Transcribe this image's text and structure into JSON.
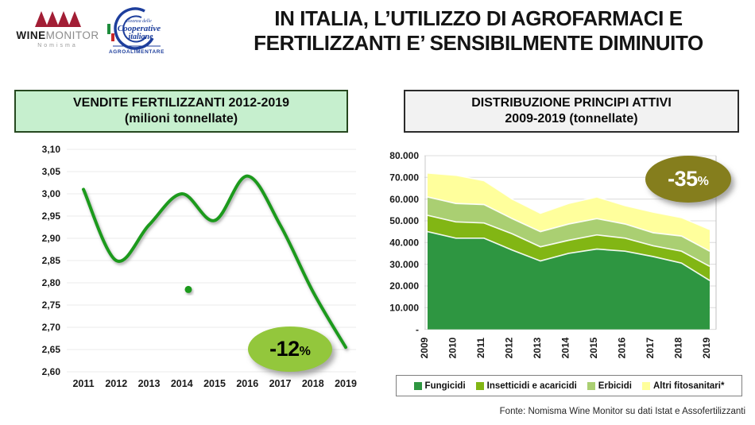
{
  "slide": {
    "title_line1": "IN ITALIA, L’UTILIZZO DI AGROFARMACI E",
    "title_line2": "FERTILIZZANTI E’ SENSIBILMENTE DIMINUITO",
    "footer": "Fonte: Nomisma Wine Monitor su dati Istat e Assofertilizzanti"
  },
  "logos": {
    "winemonitor": {
      "name": "Wine Monitor Nomisma",
      "word_strong": "WINE",
      "word_light": "MONITOR",
      "subtext": "Nomisma",
      "mark_color": "#a21e35"
    },
    "cooperative": {
      "name": "Alleanza delle Cooperative Italiane Agroalimentare",
      "line1": "alleanza delle",
      "line2": "Cooperative",
      "line3": "italiane",
      "line4": "AGROALIMENTARE",
      "color": "#1d3e9c",
      "flag_green": "#1e8c3c",
      "flag_red": "#c82828"
    }
  },
  "chart_data": [
    {
      "type": "line",
      "title": "VENDITE FERTILIZZANTI 2012-2019",
      "subtitle": "(milioni tonnellate)",
      "x": [
        2011,
        2012,
        2013,
        2014,
        2015,
        2016,
        2017,
        2018,
        2019
      ],
      "values": [
        3.01,
        2.85,
        2.93,
        3.0,
        2.94,
        3.04,
        2.93,
        2.78,
        2.655
      ],
      "ylim": [
        2.6,
        3.1
      ],
      "ytick_step": 0.05,
      "ytick_labels": [
        "3,10",
        "3,05",
        "3,00",
        "2,95",
        "2,90",
        "2,85",
        "2,80",
        "2,75",
        "2,70",
        "2,65",
        "2,60"
      ],
      "line_color": "#1b9a1f",
      "smooth": true,
      "grid": true,
      "annotation_dot": {
        "x": 2014.2,
        "y": 2.785
      },
      "badge": {
        "text": "-12",
        "suffix": "%",
        "fill": "#93c73c",
        "text_color": "#000000"
      }
    },
    {
      "type": "area",
      "stacked": true,
      "title": "DISTRIBUZIONE PRINCIPI ATTIVI",
      "subtitle": "2009-2019 (tonnellate)",
      "x": [
        2009,
        2010,
        2011,
        2012,
        2013,
        2014,
        2015,
        2016,
        2017,
        2018,
        2019
      ],
      "series": [
        {
          "name": "Fungicidi",
          "color": "#2e9641",
          "values": [
            45000,
            42000,
            42000,
            36500,
            31500,
            35000,
            37000,
            36000,
            33500,
            30500,
            22500
          ]
        },
        {
          "name": "Insetticidi e acaricidi",
          "color": "#82b614",
          "values": [
            7500,
            7500,
            7000,
            7500,
            6500,
            6000,
            6500,
            6000,
            5000,
            5500,
            6500
          ]
        },
        {
          "name": "Erbicidi",
          "color": "#aacf72",
          "values": [
            8500,
            8500,
            8500,
            7000,
            7000,
            7500,
            7500,
            6500,
            6000,
            7000,
            7000
          ]
        },
        {
          "name": "Altri fitosanitari*",
          "color": "#ffff9c",
          "values": [
            11000,
            13000,
            11000,
            9000,
            8500,
            9500,
            10000,
            8500,
            9500,
            8500,
            10000
          ]
        }
      ],
      "ylim": [
        0,
        80000
      ],
      "ytick_labels": [
        "80.000",
        "70.000",
        "60.000",
        "50.000",
        "40.000",
        "30.000",
        "20.000",
        "10.000",
        "-"
      ],
      "grid": true,
      "legend_position": "bottom",
      "badge": {
        "text": "-35",
        "suffix": "%",
        "fill": "#857e1d",
        "text_color": "#ffffff"
      }
    }
  ]
}
